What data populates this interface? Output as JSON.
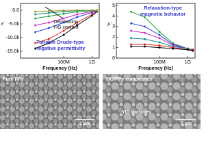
{
  "chart_data": [
    {
      "type": "line",
      "y_label": "ε'",
      "x_label": "Frequency (Hz)",
      "log_x": true,
      "annotations": [
        "Decreasing",
        "YIG content",
        "Tunable Drude-type",
        "negative permittivity"
      ],
      "x": [
        10000000,
        30000000,
        100000000,
        300000000,
        1000000000,
        1500000000
      ],
      "xlim": [
        3000000,
        1800000000
      ],
      "xticks": [
        {
          "value": 100000000,
          "label": "100M"
        },
        {
          "value": 1000000000,
          "label": "1G"
        }
      ],
      "ylim": [
        -17500,
        2500
      ],
      "yticks": [
        {
          "value": 0,
          "label": "0.0"
        },
        {
          "value": -5000,
          "label": "-5.0k"
        },
        {
          "value": -10000,
          "label": "-10.0k"
        },
        {
          "value": -15000,
          "label": "-15.0k"
        }
      ],
      "series": [
        {
          "color": "#000000",
          "values": [
            -14000,
            -12000,
            -9000,
            -5500,
            -2000,
            -500
          ]
        },
        {
          "color": "#e0201c",
          "values": [
            -12000,
            -10500,
            -7500,
            -4500,
            -1500,
            -300
          ]
        },
        {
          "color": "#2a3fd8",
          "values": [
            -8000,
            -6500,
            -4500,
            -2500,
            -800,
            -200
          ]
        },
        {
          "color": "#d020c8",
          "values": [
            -5500,
            -4500,
            -3000,
            -1500,
            -500,
            -100
          ]
        },
        {
          "color": "#1ea03a",
          "values": [
            -3000,
            -2200,
            -1300,
            -600,
            -200,
            -50
          ]
        },
        {
          "color": "#108a8a",
          "values": [
            -1500,
            -1000,
            -500,
            -200,
            -50,
            0
          ]
        },
        {
          "color": "#9a9a20",
          "values": [
            -500,
            -300,
            -100,
            0,
            0,
            0
          ]
        }
      ]
    },
    {
      "type": "line",
      "y_label": "μ'",
      "x_label": "Frequency (Hz)",
      "log_x": true,
      "annotations": [
        "Relaxation-type",
        "magnetic behavior"
      ],
      "x": [
        10000000,
        30000000,
        100000000,
        300000000,
        1000000000,
        1500000000
      ],
      "xlim": [
        3000000,
        1800000000
      ],
      "xticks": [
        {
          "value": 100000000,
          "label": "100M"
        },
        {
          "value": 1000000000,
          "label": "1G"
        }
      ],
      "ylim": [
        0,
        5.2
      ],
      "yticks": [
        0,
        1,
        2,
        3,
        4,
        5
      ],
      "series": [
        {
          "color": "#1ea03a",
          "values": [
            4.4,
            3.9,
            2.5,
            1.4,
            0.9,
            0.8
          ]
        },
        {
          "color": "#2a3fd8",
          "values": [
            3.3,
            3.0,
            2.2,
            1.3,
            0.9,
            0.8
          ]
        },
        {
          "color": "#d020c8",
          "values": [
            2.6,
            2.4,
            1.9,
            1.2,
            0.9,
            0.8
          ]
        },
        {
          "color": "#108a8a",
          "values": [
            1.9,
            1.8,
            1.5,
            1.1,
            0.9,
            0.8
          ]
        },
        {
          "color": "#e0201c",
          "values": [
            1.3,
            1.3,
            1.2,
            1.0,
            0.8,
            0.8
          ]
        },
        {
          "color": "#000000",
          "values": [
            1.1,
            1.1,
            1.0,
            0.9,
            0.8,
            0.7
          ]
        }
      ]
    }
  ],
  "images": [
    {
      "label": "Pure PPy",
      "scale": "1 μm"
    },
    {
      "label": "YIG/PPy composites",
      "scale": "1 μm",
      "note": "YIG particles"
    }
  ]
}
